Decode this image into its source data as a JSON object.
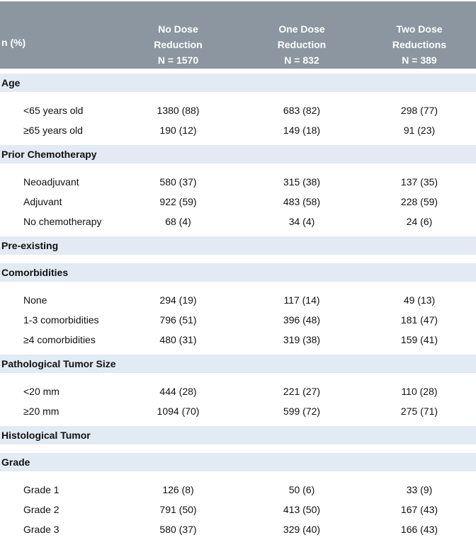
{
  "colors": {
    "header_bg": "#8b96a0",
    "header_text": "#ffffff",
    "band_bg": "#e2eaf3",
    "body_text": "#111111"
  },
  "table": {
    "col_header_left": "n (%)",
    "columns": [
      {
        "lines": [
          "No Dose",
          "Reduction",
          "N = 1570"
        ]
      },
      {
        "lines": [
          "One Dose",
          "Reduction",
          "N = 832"
        ]
      },
      {
        "lines": [
          "Two Dose",
          "Reductions",
          "N = 389"
        ]
      }
    ],
    "sections": [
      {
        "title_lines": [
          "Age"
        ],
        "rows": [
          {
            "label": "<65 years old",
            "values": [
              "1380 (88)",
              "683 (82)",
              "298 (77)"
            ]
          },
          {
            "label": "≥65 years old",
            "values": [
              "190 (12)",
              "149 (18)",
              "91 (23)"
            ]
          }
        ]
      },
      {
        "title_lines": [
          "Prior Chemotherapy"
        ],
        "rows": [
          {
            "label": "Neoadjuvant",
            "values": [
              "580 (37)",
              "315 (38)",
              "137 (35)"
            ]
          },
          {
            "label": "Adjuvant",
            "values": [
              "922 (59)",
              "483 (58)",
              "228 (59)"
            ]
          },
          {
            "label": "No chemotherapy",
            "values": [
              "68 (4)",
              "34 (4)",
              "24 (6)"
            ]
          }
        ]
      },
      {
        "title_lines": [
          "Pre-existing",
          "Comorbidities"
        ],
        "rows": [
          {
            "label": "None",
            "values": [
              "294 (19)",
              "117 (14)",
              "49 (13)"
            ]
          },
          {
            "label": "1-3 comorbidities",
            "values": [
              "796 (51)",
              "396 (48)",
              "181 (47)"
            ]
          },
          {
            "label": "≥4 comorbidities",
            "values": [
              "480 (31)",
              "319 (38)",
              "159 (41)"
            ]
          }
        ]
      },
      {
        "title_lines": [
          "Pathological Tumor Size"
        ],
        "rows": [
          {
            "label": "<20 mm",
            "values": [
              "444 (28)",
              "221 (27)",
              "110 (28)"
            ]
          },
          {
            "label": "≥20 mm",
            "values": [
              "1094 (70)",
              "599 (72)",
              "275 (71)"
            ]
          }
        ]
      },
      {
        "title_lines": [
          "Histological Tumor",
          "Grade"
        ],
        "rows": [
          {
            "label": "Grade 1",
            "values": [
              "126 (8)",
              "50 (6)",
              "33 (9)"
            ]
          },
          {
            "label": "Grade 2",
            "values": [
              "791 (50)",
              "413 (50)",
              "167 (43)"
            ]
          },
          {
            "label": "Grade 3",
            "values": [
              "580 (37)",
              "329 (40)",
              "166 (43)"
            ]
          }
        ]
      }
    ]
  }
}
